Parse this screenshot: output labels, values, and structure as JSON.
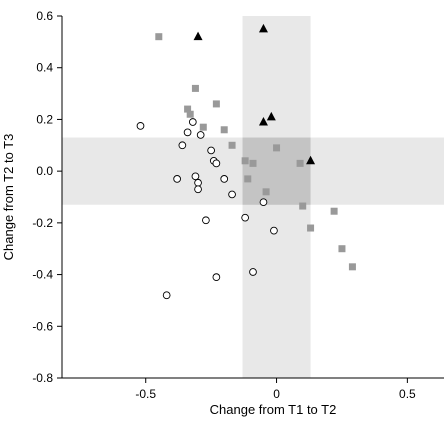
{
  "chart_data": {
    "type": "scatter",
    "title": "",
    "xlabel": "Change from T1 to T2",
    "ylabel": "Change from T2 to T3",
    "xlim": [
      -0.82,
      0.64
    ],
    "ylim": [
      -0.8,
      0.6
    ],
    "xticks": [
      -0.5,
      0,
      0.5
    ],
    "xtick_labels": [
      "-0.5",
      "0",
      "0.5"
    ],
    "yticks": [
      -0.8,
      -0.6,
      -0.4,
      -0.2,
      0.0,
      0.2,
      0.4,
      0.6
    ],
    "ytick_labels": [
      "-0.8",
      "-0.6",
      "-0.4",
      "-0.2",
      "0.0",
      "0.2",
      "0.4",
      "0.6"
    ],
    "grid": false,
    "legend": "none",
    "shaded_regions": [
      {
        "x": [
          -0.13,
          0.13
        ],
        "y": [
          -0.8,
          0.6
        ],
        "color": "#e8e8e8"
      },
      {
        "x": [
          -0.82,
          0.64
        ],
        "y": [
          -0.13,
          0.13
        ],
        "color": "#e8e8e8"
      },
      {
        "x": [
          -0.13,
          0.13
        ],
        "y": [
          -0.13,
          0.13
        ],
        "color": "#c4c4c4"
      }
    ],
    "series": [
      {
        "marker": "open-circle",
        "color": "#000000",
        "points": [
          [
            -0.52,
            0.175
          ],
          [
            -0.36,
            0.1
          ],
          [
            -0.34,
            0.15
          ],
          [
            -0.32,
            0.19
          ],
          [
            -0.29,
            0.14
          ],
          [
            -0.25,
            0.08
          ],
          [
            -0.24,
            0.04
          ],
          [
            -0.23,
            0.03
          ],
          [
            -0.2,
            -0.03
          ],
          [
            -0.38,
            -0.03
          ],
          [
            -0.31,
            -0.02
          ],
          [
            -0.3,
            -0.045
          ],
          [
            -0.3,
            -0.07
          ],
          [
            -0.17,
            -0.09
          ],
          [
            -0.27,
            -0.19
          ],
          [
            -0.12,
            -0.18
          ],
          [
            -0.05,
            -0.12
          ],
          [
            -0.01,
            -0.23
          ],
          [
            -0.09,
            -0.39
          ],
          [
            -0.23,
            -0.41
          ],
          [
            -0.42,
            -0.48
          ]
        ]
      },
      {
        "marker": "filled-square",
        "color": "#999999",
        "points": [
          [
            -0.45,
            0.52
          ],
          [
            -0.31,
            0.32
          ],
          [
            -0.34,
            0.24
          ],
          [
            -0.33,
            0.22
          ],
          [
            -0.23,
            0.26
          ],
          [
            -0.28,
            0.17
          ],
          [
            -0.2,
            0.16
          ],
          [
            -0.17,
            0.1
          ],
          [
            -0.12,
            0.04
          ],
          [
            -0.09,
            0.03
          ],
          [
            -0.11,
            -0.03
          ],
          [
            -0.04,
            -0.08
          ],
          [
            0.0,
            0.09
          ],
          [
            0.09,
            0.03
          ],
          [
            0.1,
            -0.135
          ],
          [
            0.13,
            -0.22
          ],
          [
            0.22,
            -0.155
          ],
          [
            0.25,
            -0.3
          ],
          [
            0.29,
            -0.37
          ]
        ]
      },
      {
        "marker": "filled-triangle",
        "color": "#000000",
        "points": [
          [
            -0.3,
            0.52
          ],
          [
            -0.05,
            0.55
          ],
          [
            -0.05,
            0.19
          ],
          [
            -0.02,
            0.21
          ],
          [
            0.13,
            0.04
          ]
        ]
      }
    ]
  }
}
